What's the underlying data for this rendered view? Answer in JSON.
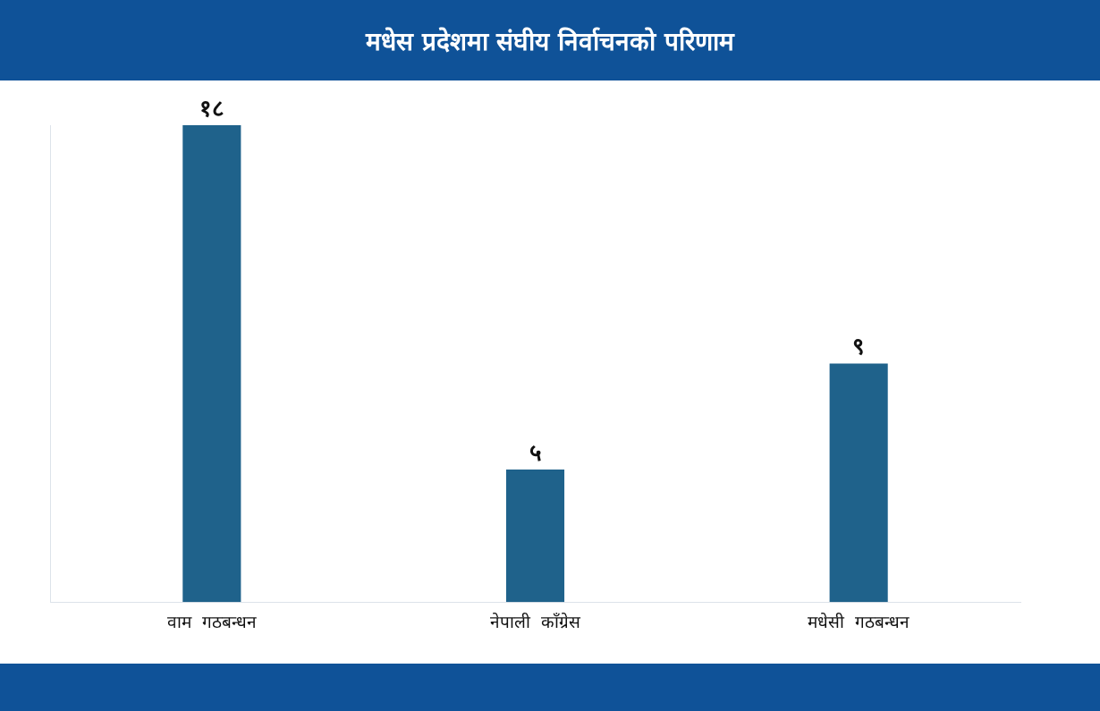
{
  "chart_data": {
    "type": "bar",
    "title": "मधेस प्रदेशमा संघीय निर्वाचनको परिणाम",
    "categories": [
      "वाम  गठबन्धन",
      "नेपाली  काँग्रेस",
      "मधेसी  गठबन्धन"
    ],
    "values": [
      18,
      5,
      9
    ],
    "value_labels": [
      "१८",
      "५",
      "९"
    ],
    "color": "#1f628b",
    "grid": false,
    "legend": false
  }
}
